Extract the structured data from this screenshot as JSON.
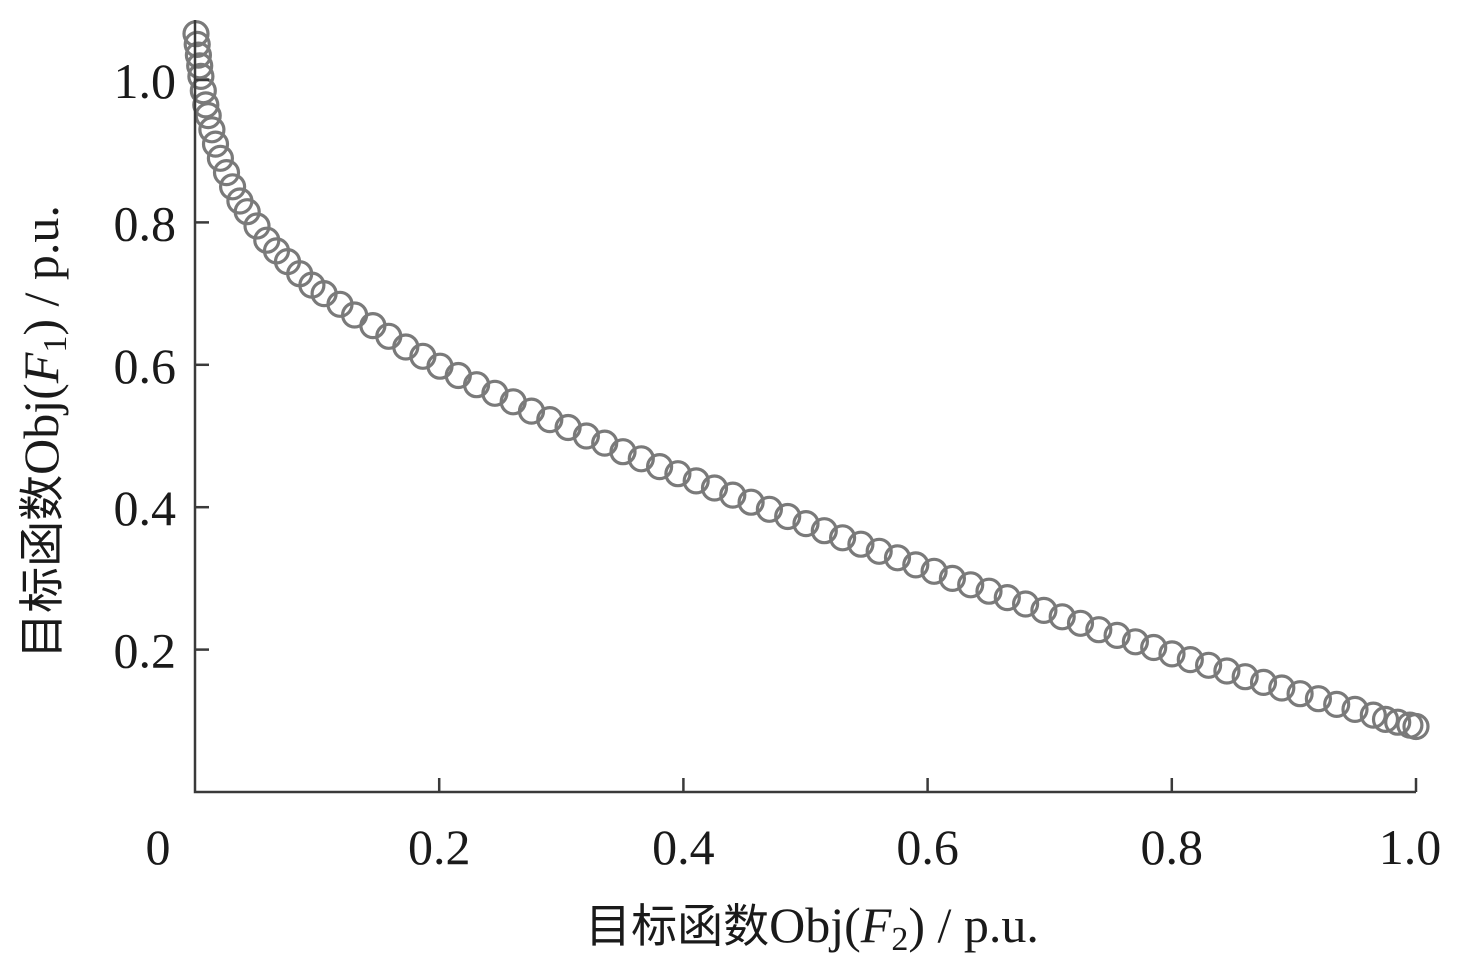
{
  "chart_data": {
    "type": "scatter",
    "title": "",
    "xlabel": {
      "prefix": "目标函数",
      "obj": "Obj(",
      "var": "F",
      "sub": "2",
      "suffix": ") / p.u."
    },
    "ylabel": {
      "prefix": "目标函数",
      "obj": "Obj(",
      "var": "F",
      "sub": "1",
      "suffix": ") / p.u."
    },
    "xlim": [
      0,
      1.0
    ],
    "ylim": [
      0,
      1.08
    ],
    "xticks": [
      {
        "value": 0,
        "label": "0"
      },
      {
        "value": 0.2,
        "label": "0.2"
      },
      {
        "value": 0.4,
        "label": "0.4"
      },
      {
        "value": 0.6,
        "label": "0.6"
      },
      {
        "value": 0.8,
        "label": "0.8"
      },
      {
        "value": 1.0,
        "label": "1.0"
      }
    ],
    "yticks": [
      {
        "value": 0.2,
        "label": "0.2"
      },
      {
        "value": 0.4,
        "label": "0.4"
      },
      {
        "value": 0.6,
        "label": "0.6"
      },
      {
        "value": 0.8,
        "label": "0.8"
      },
      {
        "value": 1.0,
        "label": "1.0"
      }
    ],
    "grid": false,
    "marker": "open-circle",
    "marker_color": "#7a7a7a",
    "series": [
      {
        "points": [
          [
            0.0,
            1.065
          ],
          [
            0.001,
            1.05
          ],
          [
            0.002,
            1.035
          ],
          [
            0.003,
            1.02
          ],
          [
            0.004,
            1.005
          ],
          [
            0.006,
            0.985
          ],
          [
            0.008,
            0.965
          ],
          [
            0.01,
            0.95
          ],
          [
            0.013,
            0.93
          ],
          [
            0.016,
            0.91
          ],
          [
            0.02,
            0.89
          ],
          [
            0.025,
            0.87
          ],
          [
            0.03,
            0.85
          ],
          [
            0.036,
            0.83
          ],
          [
            0.042,
            0.815
          ],
          [
            0.05,
            0.795
          ],
          [
            0.058,
            0.775
          ],
          [
            0.066,
            0.76
          ],
          [
            0.075,
            0.745
          ],
          [
            0.085,
            0.728
          ],
          [
            0.095,
            0.712
          ],
          [
            0.105,
            0.7
          ],
          [
            0.118,
            0.685
          ],
          [
            0.13,
            0.67
          ],
          [
            0.145,
            0.655
          ],
          [
            0.158,
            0.64
          ],
          [
            0.172,
            0.625
          ],
          [
            0.186,
            0.612
          ],
          [
            0.2,
            0.598
          ],
          [
            0.215,
            0.585
          ],
          [
            0.23,
            0.572
          ],
          [
            0.245,
            0.56
          ],
          [
            0.26,
            0.548
          ],
          [
            0.275,
            0.535
          ],
          [
            0.29,
            0.523
          ],
          [
            0.305,
            0.512
          ],
          [
            0.32,
            0.5
          ],
          [
            0.335,
            0.49
          ],
          [
            0.35,
            0.478
          ],
          [
            0.365,
            0.468
          ],
          [
            0.38,
            0.457
          ],
          [
            0.395,
            0.447
          ],
          [
            0.41,
            0.437
          ],
          [
            0.425,
            0.427
          ],
          [
            0.44,
            0.417
          ],
          [
            0.455,
            0.407
          ],
          [
            0.47,
            0.397
          ],
          [
            0.485,
            0.387
          ],
          [
            0.5,
            0.377
          ],
          [
            0.515,
            0.367
          ],
          [
            0.53,
            0.357
          ],
          [
            0.545,
            0.348
          ],
          [
            0.56,
            0.338
          ],
          [
            0.575,
            0.329
          ],
          [
            0.59,
            0.319
          ],
          [
            0.605,
            0.31
          ],
          [
            0.62,
            0.3
          ],
          [
            0.635,
            0.291
          ],
          [
            0.65,
            0.282
          ],
          [
            0.665,
            0.273
          ],
          [
            0.68,
            0.264
          ],
          [
            0.695,
            0.255
          ],
          [
            0.71,
            0.246
          ],
          [
            0.725,
            0.237
          ],
          [
            0.74,
            0.228
          ],
          [
            0.755,
            0.22
          ],
          [
            0.77,
            0.211
          ],
          [
            0.785,
            0.203
          ],
          [
            0.8,
            0.194
          ],
          [
            0.815,
            0.186
          ],
          [
            0.83,
            0.178
          ],
          [
            0.845,
            0.17
          ],
          [
            0.86,
            0.162
          ],
          [
            0.875,
            0.154
          ],
          [
            0.89,
            0.146
          ],
          [
            0.905,
            0.138
          ],
          [
            0.92,
            0.131
          ],
          [
            0.935,
            0.123
          ],
          [
            0.95,
            0.116
          ],
          [
            0.965,
            0.108
          ],
          [
            0.975,
            0.102
          ],
          [
            0.985,
            0.098
          ],
          [
            0.995,
            0.094
          ],
          [
            1.0,
            0.092
          ]
        ]
      }
    ]
  }
}
